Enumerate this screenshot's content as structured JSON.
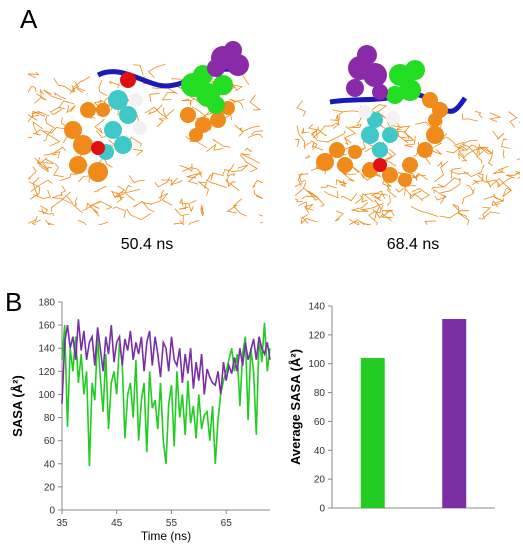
{
  "panels": {
    "a": {
      "letter": "A",
      "snapshots": [
        {
          "caption": "50.4 ns"
        },
        {
          "caption": "68.4 ns"
        }
      ]
    },
    "b": {
      "letter": "B"
    }
  },
  "colors": {
    "membrane": "#f08a1a",
    "backbone": "#1a1ab8",
    "green_residue": "#22dd22",
    "purple_residue": "#8a2aa8",
    "cyan_ligand": "#40c8c8",
    "white_atoms": "#f2f2f2",
    "red_atoms": "#e01010",
    "series_green": "#22cc22",
    "series_purple": "#7a2fa5"
  },
  "chart_data": [
    {
      "type": "line",
      "xlabel": "Time (ns)",
      "ylabel": "SASA (Å²)",
      "xlim": [
        35,
        73
      ],
      "ylim": [
        0,
        180
      ],
      "xticks": [
        35,
        45,
        55,
        65
      ],
      "yticks": [
        0,
        20,
        40,
        60,
        80,
        100,
        120,
        140,
        160,
        180
      ],
      "grid": false,
      "series": [
        {
          "color": "#22cc22",
          "x": [
            35,
            35.5,
            36,
            36.5,
            37,
            37.5,
            38,
            38.5,
            39,
            39.5,
            40,
            40.5,
            41,
            41.5,
            42,
            42.5,
            43,
            43.5,
            44,
            44.5,
            45,
            45.5,
            46,
            46.5,
            47,
            47.5,
            48,
            48.5,
            49,
            49.5,
            50,
            50.5,
            51,
            51.5,
            52,
            52.5,
            53,
            53.5,
            54,
            54.5,
            55,
            55.5,
            56,
            56.5,
            57,
            57.5,
            58,
            58.5,
            59,
            59.5,
            60,
            60.5,
            61,
            61.5,
            62,
            62.5,
            63,
            63.5,
            64,
            64.5,
            65,
            65.5,
            66,
            66.5,
            67,
            67.5,
            68,
            68.5,
            69,
            69.5,
            70,
            70.5,
            71,
            71.5,
            72,
            72.5,
            73
          ],
          "y": [
            130,
            160,
            72,
            140,
            120,
            150,
            110,
            135,
            100,
            120,
            38,
            110,
            95,
            150,
            115,
            85,
            135,
            70,
            110,
            120,
            100,
            145,
            128,
            62,
            100,
            110,
            80,
            130,
            60,
            95,
            110,
            50,
            120,
            88,
            95,
            70,
            110,
            60,
            40,
            92,
            108,
            55,
            120,
            80,
            100,
            65,
            112,
            75,
            90,
            62,
            100,
            70,
            82,
            85,
            60,
            90,
            40,
            78,
            100,
            112,
            120,
            130,
            140,
            120,
            135,
            90,
            135,
            150,
            78,
            140,
            120,
            65,
            150,
            128,
            162,
            120,
            140
          ]
        },
        {
          "color": "#7a2fa5",
          "x": [
            35,
            35.5,
            36,
            36.5,
            37,
            37.5,
            38,
            38.5,
            39,
            39.5,
            40,
            40.5,
            41,
            41.5,
            42,
            42.5,
            43,
            43.5,
            44,
            44.5,
            45,
            45.5,
            46,
            46.5,
            47,
            47.5,
            48,
            48.5,
            49,
            49.5,
            50,
            50.5,
            51,
            51.5,
            52,
            52.5,
            53,
            53.5,
            54,
            54.5,
            55,
            55.5,
            56,
            56.5,
            57,
            57.5,
            58,
            58.5,
            59,
            59.5,
            60,
            60.5,
            61,
            61.5,
            62,
            62.5,
            63,
            63.5,
            64,
            64.5,
            65,
            65.5,
            66,
            66.5,
            67,
            67.5,
            68,
            68.5,
            69,
            69.5,
            70,
            70.5,
            71,
            71.5,
            72,
            72.5,
            73
          ],
          "y": [
            92,
            145,
            160,
            140,
            150,
            130,
            165,
            138,
            155,
            130,
            145,
            150,
            125,
            158,
            140,
            120,
            150,
            135,
            160,
            128,
            145,
            150,
            125,
            148,
            138,
            155,
            130,
            145,
            135,
            150,
            120,
            145,
            155,
            125,
            150,
            135,
            115,
            145,
            140,
            120,
            150,
            130,
            125,
            140,
            110,
            135,
            118,
            140,
            105,
            128,
            112,
            135,
            100,
            122,
            115,
            110,
            108,
            120,
            100,
            128,
            112,
            125,
            118,
            132,
            120,
            140,
            125,
            145,
            130,
            138,
            148,
            130,
            150,
            140,
            135,
            145,
            130
          ]
        }
      ]
    },
    {
      "type": "bar",
      "ylabel": "Average SASA (Å²)",
      "ylim": [
        0,
        140
      ],
      "yticks": [
        0,
        20,
        40,
        60,
        80,
        100,
        120,
        140
      ],
      "categories": [
        "",
        ""
      ],
      "values": [
        104,
        131
      ],
      "colors": [
        "#22cc22",
        "#7a2fa5"
      ],
      "grid": false
    }
  ]
}
